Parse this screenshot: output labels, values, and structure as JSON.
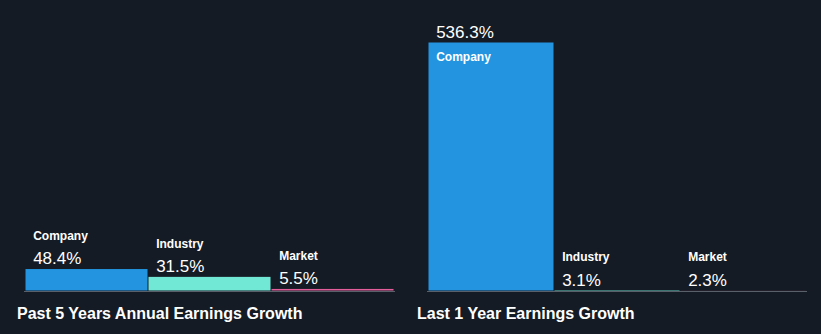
{
  "chart_data": [
    {
      "type": "bar",
      "title": "Past 5 Years Annual Earnings Growth",
      "categories": [
        "Company",
        "Industry",
        "Market"
      ],
      "values": [
        48.4,
        31.5,
        5.5
      ],
      "value_labels": [
        "48.4%",
        "31.5%",
        "5.5%"
      ],
      "colors": [
        "#2394df",
        "#71e7d6",
        "#e35e9b"
      ],
      "ylim": [
        0,
        536.3
      ],
      "data_labels": true,
      "tick_labels": false
    },
    {
      "type": "bar",
      "title": "Last 1 Year Earnings Growth",
      "categories": [
        "Company",
        "Industry",
        "Market"
      ],
      "values": [
        536.3,
        3.1,
        2.3
      ],
      "value_labels": [
        "536.3%",
        "3.1%",
        "2.3%"
      ],
      "colors": [
        "#2394df",
        "#71e7d6",
        "#e35e9b"
      ],
      "ylim": [
        0,
        536.3
      ],
      "data_labels": true,
      "tick_labels": false
    }
  ]
}
